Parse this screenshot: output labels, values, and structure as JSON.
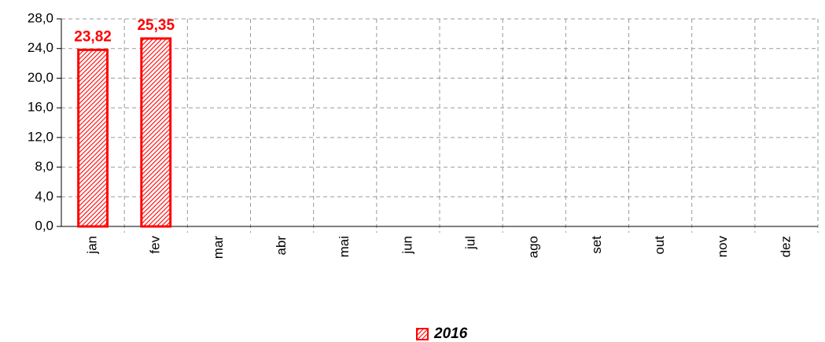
{
  "chart_data": {
    "type": "bar",
    "categories": [
      "jan",
      "fev",
      "mar",
      "abr",
      "mai",
      "jun",
      "jul",
      "ago",
      "set",
      "out",
      "nov",
      "dez"
    ],
    "series": [
      {
        "name": "2016",
        "color": "#ff0000",
        "values": [
          23.82,
          25.35,
          null,
          null,
          null,
          null,
          null,
          null,
          null,
          null,
          null,
          null
        ],
        "value_labels": [
          "23,82",
          "25,35",
          null,
          null,
          null,
          null,
          null,
          null,
          null,
          null,
          null,
          null
        ]
      }
    ],
    "ylim": [
      0,
      28
    ],
    "yticks": [
      {
        "value": 0,
        "label": "0,0"
      },
      {
        "value": 4,
        "label": "4,0"
      },
      {
        "value": 8,
        "label": "8,0"
      },
      {
        "value": 12,
        "label": "12,0"
      },
      {
        "value": 16,
        "label": "16,0"
      },
      {
        "value": 20,
        "label": "20,0"
      },
      {
        "value": 24,
        "label": "24,0"
      },
      {
        "value": 28,
        "label": "28,0"
      }
    ],
    "grid": true,
    "legend": "bottom"
  }
}
